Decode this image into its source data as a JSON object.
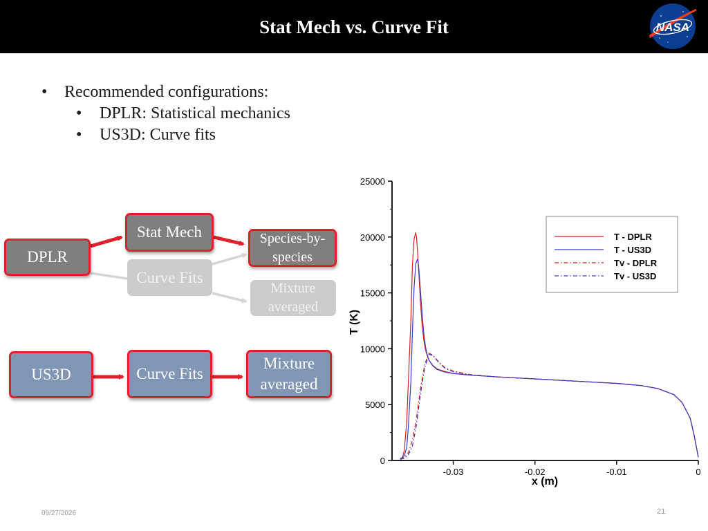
{
  "header": {
    "title": "Stat Mech vs. Curve Fit",
    "logo_text": "NASA",
    "background": "#000000"
  },
  "bullets": {
    "main": "Recommended configurations:",
    "subs": [
      "DPLR: Statistical mechanics",
      "US3D: Curve fits"
    ]
  },
  "flow": {
    "dplr": "DPLR",
    "stat_mech": "Stat Mech",
    "curve_fits_inactive": "Curve Fits",
    "species_by_species": "Species-by-species",
    "mixture_averaged_inactive": "Mixture averaged",
    "us3d": "US3D",
    "curve_fits": "Curve Fits",
    "mixture_averaged": "Mixture averaged",
    "colors": {
      "highlight": "#e0202a",
      "dark_box": "#7f7f7f",
      "light_box": "#cccccc",
      "blue_box": "#8096b4"
    }
  },
  "chart_data": {
    "type": "line",
    "xlabel": "x (m)",
    "ylabel": "T (K)",
    "xlim": [
      -0.0375,
      0
    ],
    "ylim": [
      0,
      25000
    ],
    "xticks": [
      -0.03,
      -0.02,
      -0.01,
      0
    ],
    "xtick_labels": [
      "-0.03",
      "-0.02",
      "-0.01",
      "0"
    ],
    "yticks": [
      0,
      5000,
      10000,
      15000,
      20000,
      25000
    ],
    "ytick_labels": [
      "0",
      "5000",
      "10000",
      "15000",
      "20000",
      "25000"
    ],
    "legend_position": "top-right",
    "grid": false,
    "series": [
      {
        "name": "T - DPLR",
        "color": "#d42020",
        "dash": "solid",
        "x": [
          -0.0365,
          -0.0362,
          -0.036,
          -0.0357,
          -0.0355,
          -0.0352,
          -0.035,
          -0.0348,
          -0.0346,
          -0.0345,
          -0.0344,
          -0.0342,
          -0.034,
          -0.0338,
          -0.0336,
          -0.0334,
          -0.0332,
          -0.033,
          -0.0325,
          -0.032,
          -0.031,
          -0.03,
          -0.028,
          -0.025,
          -0.02,
          -0.015,
          -0.01,
          -0.007,
          -0.005,
          -0.003,
          -0.002,
          -0.001,
          -0.0005,
          0
        ],
        "y": [
          150,
          300,
          900,
          3500,
          7000,
          12500,
          17500,
          19800,
          20400,
          20000,
          19000,
          16500,
          14000,
          12000,
          10700,
          9900,
          9400,
          9000,
          8500,
          8200,
          7950,
          7800,
          7650,
          7500,
          7300,
          7100,
          6900,
          6700,
          6450,
          5900,
          5200,
          3800,
          2200,
          300
        ]
      },
      {
        "name": "T - US3D",
        "color": "#3a3aca",
        "dash": "solid",
        "x": [
          -0.0365,
          -0.036,
          -0.0357,
          -0.0355,
          -0.0352,
          -0.035,
          -0.0348,
          -0.0346,
          -0.0344,
          -0.0343,
          -0.0342,
          -0.034,
          -0.0338,
          -0.0336,
          -0.0334,
          -0.0332,
          -0.033,
          -0.0325,
          -0.032,
          -0.031,
          -0.03,
          -0.028,
          -0.025,
          -0.02,
          -0.015,
          -0.01,
          -0.007,
          -0.005,
          -0.003,
          -0.002,
          -0.001,
          -0.0005,
          0
        ],
        "y": [
          150,
          400,
          1200,
          3000,
          7000,
          11500,
          15500,
          17600,
          18000,
          17800,
          17000,
          15000,
          13000,
          11300,
          10200,
          9500,
          9000,
          8450,
          8150,
          7900,
          7780,
          7640,
          7500,
          7300,
          7100,
          6900,
          6700,
          6450,
          5900,
          5200,
          3800,
          2200,
          300
        ]
      },
      {
        "name": "Tv - DPLR",
        "color": "#d42020",
        "dash": "6,3,1.5,3",
        "x": [
          -0.0365,
          -0.036,
          -0.0355,
          -0.035,
          -0.0345,
          -0.034,
          -0.0335,
          -0.033,
          -0.0325,
          -0.032,
          -0.0315,
          -0.031,
          -0.03,
          -0.028,
          -0.025,
          -0.02,
          -0.015,
          -0.01,
          -0.007,
          -0.005,
          -0.003,
          -0.002,
          -0.001,
          -0.0005,
          0
        ],
        "y": [
          100,
          300,
          700,
          1800,
          3800,
          6500,
          8600,
          9600,
          9450,
          9000,
          8600,
          8300,
          8000,
          7700,
          7500,
          7300,
          7100,
          6900,
          6700,
          6450,
          5900,
          5200,
          3800,
          2200,
          300
        ]
      },
      {
        "name": "Tv - US3D",
        "color": "#3a3aca",
        "dash": "6,3,1.5,3",
        "x": [
          -0.0365,
          -0.036,
          -0.0355,
          -0.035,
          -0.0345,
          -0.034,
          -0.0335,
          -0.033,
          -0.0325,
          -0.032,
          -0.0315,
          -0.031,
          -0.03,
          -0.028,
          -0.025,
          -0.02,
          -0.015,
          -0.01,
          -0.007,
          -0.005,
          -0.003,
          -0.002,
          -0.001,
          -0.0005,
          0
        ],
        "y": [
          100,
          200,
          500,
          1300,
          3200,
          6000,
          8300,
          9500,
          9400,
          8950,
          8550,
          8250,
          7950,
          7680,
          7480,
          7300,
          7100,
          6900,
          6700,
          6450,
          5900,
          5200,
          3800,
          2200,
          300
        ]
      }
    ]
  },
  "footer": {
    "date": "09/27/2026",
    "page": "21"
  }
}
